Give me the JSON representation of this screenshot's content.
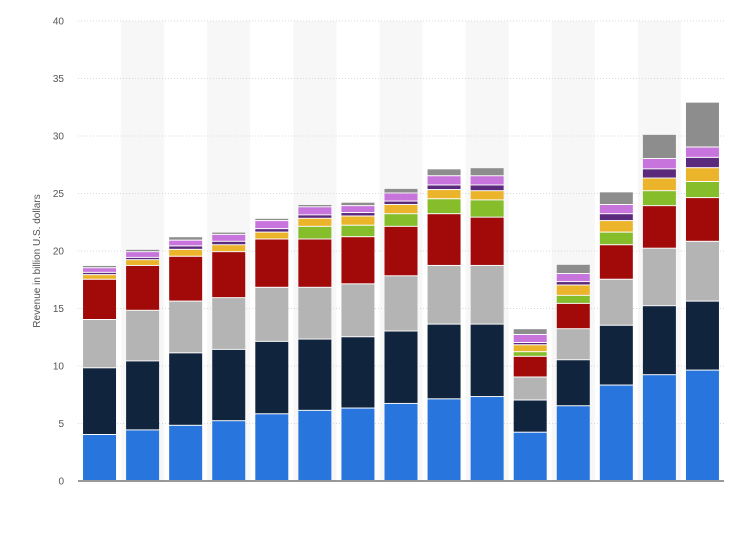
{
  "chart_data": {
    "type": "bar",
    "stacked": true,
    "title": "",
    "xlabel": "",
    "ylabel": "Revenue in billion U.S. dollars",
    "ylim": [
      0,
      40
    ],
    "yticks": [
      0,
      5,
      10,
      15,
      20,
      25,
      30,
      35,
      40
    ],
    "grid": true,
    "legend": "none",
    "categories": [
      "",
      "",
      "",
      "",
      "",
      "",
      "",
      "",
      "",
      "",
      "",
      "",
      "",
      "",
      ""
    ],
    "series": [
      {
        "color": "#2876dd",
        "values": [
          4.0,
          4.4,
          4.8,
          5.2,
          5.8,
          6.1,
          6.3,
          6.7,
          7.1,
          7.3,
          4.2,
          6.5,
          8.3,
          9.2,
          9.6
        ]
      },
      {
        "color": "#10253d",
        "values": [
          5.8,
          6.0,
          6.3,
          6.2,
          6.3,
          6.2,
          6.2,
          6.3,
          6.5,
          6.3,
          2.8,
          4.0,
          5.2,
          6.0,
          6.0
        ]
      },
      {
        "color": "#b4b4b4",
        "values": [
          4.2,
          4.4,
          4.5,
          4.5,
          4.7,
          4.5,
          4.6,
          4.8,
          5.1,
          5.1,
          2.0,
          2.7,
          4.0,
          5.0,
          5.2
        ]
      },
      {
        "color": "#a20a0a",
        "values": [
          3.5,
          3.9,
          3.9,
          4.0,
          4.2,
          4.2,
          4.1,
          4.3,
          4.5,
          4.2,
          1.8,
          2.2,
          3.0,
          3.7,
          3.8
        ]
      },
      {
        "color": "#85bd2b",
        "values": [
          0.0,
          0.0,
          0.0,
          0.0,
          0.0,
          1.1,
          1.0,
          1.1,
          1.3,
          1.5,
          0.4,
          0.7,
          1.1,
          1.3,
          1.4
        ]
      },
      {
        "color": "#ebb42a",
        "values": [
          0.4,
          0.5,
          0.6,
          0.6,
          0.6,
          0.7,
          0.8,
          0.8,
          0.8,
          0.8,
          0.6,
          0.9,
          1.0,
          1.1,
          1.2
        ]
      },
      {
        "color": "#5c2a7c",
        "values": [
          0.2,
          0.2,
          0.3,
          0.3,
          0.3,
          0.3,
          0.3,
          0.3,
          0.4,
          0.5,
          0.2,
          0.3,
          0.6,
          0.8,
          0.9
        ]
      },
      {
        "color": "#c874dd",
        "values": [
          0.4,
          0.5,
          0.5,
          0.6,
          0.7,
          0.7,
          0.6,
          0.7,
          0.8,
          0.8,
          0.7,
          0.7,
          0.8,
          0.9,
          0.9
        ]
      },
      {
        "color": "#8d8d8d",
        "values": [
          0.2,
          0.2,
          0.3,
          0.2,
          0.2,
          0.2,
          0.3,
          0.4,
          0.6,
          0.7,
          0.5,
          0.8,
          1.1,
          2.1,
          3.9
        ]
      }
    ]
  }
}
